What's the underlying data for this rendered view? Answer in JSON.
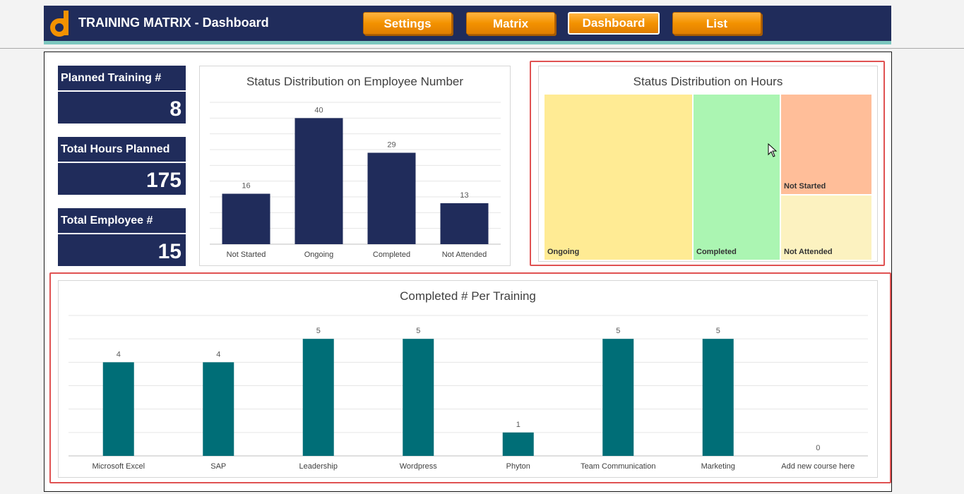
{
  "header": {
    "title": "TRAINING MATRIX - Dashboard",
    "nav": [
      {
        "label": "Settings"
      },
      {
        "label": "Matrix"
      },
      {
        "label": "Dashboard",
        "active": true
      },
      {
        "label": "List"
      }
    ]
  },
  "kpis": [
    {
      "label": "Planned Training #",
      "value": "8"
    },
    {
      "label": "Total Hours Planned",
      "value": "175"
    },
    {
      "label": "Total Employee #",
      "value": "15"
    }
  ],
  "colors": {
    "navy": "#202c5b",
    "teal": "#006e77",
    "orange": "#f39200",
    "ongoing": "#ffeb94",
    "completed": "#abf5b2",
    "not_started": "#ffbe99",
    "not_attended": "#fcf2c0"
  },
  "chart_data": [
    {
      "id": "employee-status",
      "type": "bar",
      "title": "Status Distribution on Employee Number",
      "categories": [
        "Not Started",
        "Ongoing",
        "Completed",
        "Not Attended"
      ],
      "values": [
        16,
        40,
        29,
        13
      ],
      "ylim": [
        0,
        45
      ],
      "grid": true,
      "data_labels": true
    },
    {
      "id": "hours-status",
      "type": "treemap",
      "title": "Status Distribution on Hours",
      "categories": [
        "Ongoing",
        "Completed",
        "Not Started",
        "Not Attended"
      ]
    },
    {
      "id": "completed-per-training",
      "type": "bar",
      "title": "Completed # Per Training",
      "categories": [
        "Microsoft Excel",
        "SAP",
        "Leadership",
        "Wordpress",
        "Phyton",
        "Team Communication",
        "Marketing",
        "Add new course here"
      ],
      "values": [
        4,
        4,
        5,
        5,
        1,
        5,
        5,
        0
      ],
      "ylim": [
        0,
        6
      ],
      "grid": true,
      "data_labels": true
    }
  ]
}
